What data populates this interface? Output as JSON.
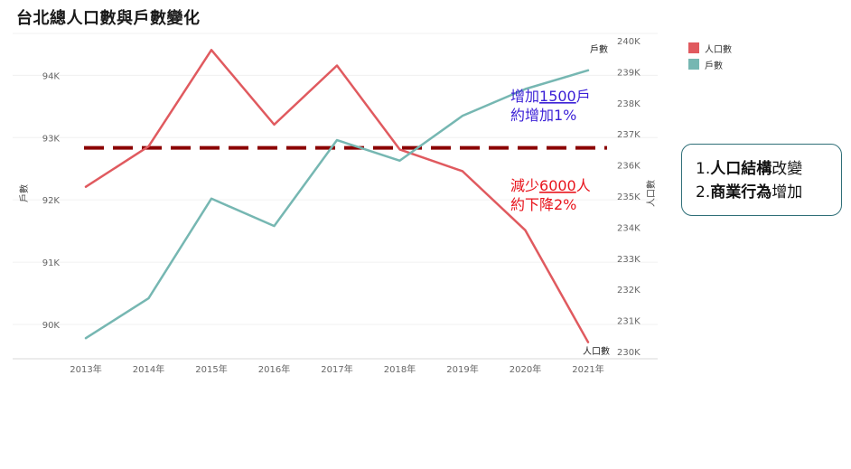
{
  "title": "台北總人口數與戶數變化",
  "chart_data": {
    "type": "line",
    "categories": [
      "2013年",
      "2014年",
      "2015年",
      "2016年",
      "2017年",
      "2018年",
      "2019年",
      "2020年",
      "2021年"
    ],
    "series": [
      {
        "name": "人口數",
        "color": "#e05a5f",
        "axis": "right",
        "values": [
          235.3,
          236.6,
          239.7,
          237.3,
          239.2,
          236.5,
          235.8,
          233.9,
          230.3
        ]
      },
      {
        "name": "戶數",
        "color": "#76b7b2",
        "axis": "left",
        "values": [
          89.78,
          90.42,
          92.02,
          91.58,
          92.96,
          92.63,
          93.35,
          93.78,
          94.08
        ]
      }
    ],
    "left_axis": {
      "label": "戶數",
      "min": 89.55,
      "max": 94.6,
      "ticks": [
        90,
        91,
        92,
        93,
        94
      ],
      "tick_labels": [
        "90K",
        "91K",
        "92K",
        "93K",
        "94K"
      ]
    },
    "right_axis": {
      "label": "人口數",
      "min": 230,
      "max": 240,
      "ticks": [
        230,
        231,
        232,
        233,
        234,
        235,
        236,
        237,
        238,
        239,
        240
      ],
      "tick_labels": [
        "230K",
        "231K",
        "232K",
        "233K",
        "234K",
        "235K",
        "236K",
        "237K",
        "238K",
        "239K",
        "240K"
      ]
    },
    "reference_line": {
      "axis": "right",
      "value": 236.55,
      "color": "#8b0000",
      "style": "dashed"
    },
    "end_labels": {
      "households": "戶數",
      "population": "人口數"
    },
    "legend_position": "right",
    "grid": true
  },
  "annotations": {
    "households_change": {
      "prefix": "增加",
      "number": "1500",
      "suffix": "戶",
      "line2": "約增加1%",
      "color": "#3a1fd6"
    },
    "population_change": {
      "prefix": "減少",
      "number": "6000",
      "suffix": "人",
      "line2": "約下降2%",
      "color": "#e8141c"
    }
  },
  "legend": [
    {
      "label": "人口數",
      "color": "#e05a5f"
    },
    {
      "label": "戶數",
      "color": "#76b7b2"
    }
  ],
  "note": {
    "line1_prefix": "1.",
    "line1_bold": "人口結構",
    "line1_rest": "改變",
    "line2_prefix": "2.",
    "line2_bold": "商業行為",
    "line2_rest": "增加"
  }
}
